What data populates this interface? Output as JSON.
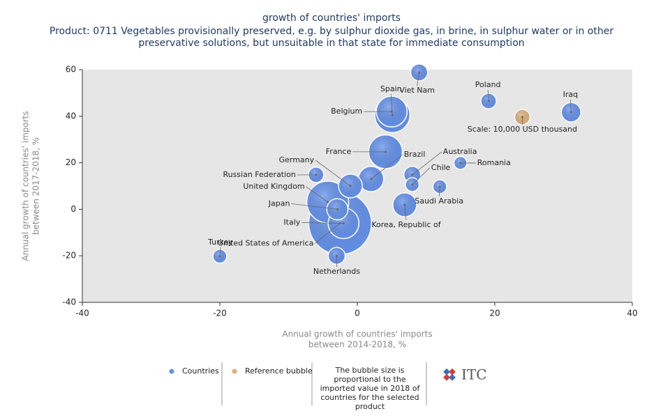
{
  "chart_data": {
    "type": "bubble",
    "title": "growth of countries' imports",
    "subtitle": "Product: 0711 Vegetables provisionally preserved, e.g. by sulphur dioxide gas, in brine, in sulphur water or in other preservative solutions, but unsuitable in that state for immediate consumption",
    "x_label": [
      "Annual growth of countries' imports",
      "between 2014-2018, %"
    ],
    "y_label": [
      "Annual growth of countries' imports",
      "between 2017-2018, %"
    ],
    "xlim": [
      -40,
      40
    ],
    "xticks": [
      -40,
      -20,
      0,
      20,
      40
    ],
    "ylim": [
      -40,
      60
    ],
    "yticks": [
      -40,
      -20,
      0,
      20,
      40,
      60
    ],
    "size_unit": "USD thousand",
    "series": [
      {
        "name": "Countries",
        "color": "#6490e8",
        "labels": [
          "Viet Nam",
          "Spain",
          "Belgium",
          "Poland",
          "Iraq",
          "France",
          "Brazil",
          "Australia",
          "Chile",
          "Romania",
          "Saudi Arabia",
          "Korea, Republic of",
          "Germany",
          "Russian Federation",
          "United Kingdom",
          "Japan",
          "Italy",
          "United States of America",
          "Turkey",
          "Netherlands"
        ],
        "x": [
          9,
          5.1,
          5,
          19.1,
          31.1,
          4.1,
          2,
          8,
          8,
          15,
          12,
          6.9,
          -1,
          -6,
          -4.3,
          -2.9,
          -2,
          -2.5,
          -20,
          -3
        ],
        "values": [
          58.8,
          40.5,
          42,
          46.5,
          41.7,
          24.7,
          13,
          14.8,
          10.6,
          19.9,
          9.7,
          1.9,
          10,
          14.8,
          3.1,
          0,
          -6,
          -6,
          -20.2,
          -20
        ],
        "sizes": [
          12000,
          52000,
          40000,
          10000,
          16000,
          48000,
          27000,
          12000,
          8000,
          7000,
          8000,
          24000,
          24000,
          10000,
          74000,
          19000,
          40000,
          167000,
          8000,
          12000
        ]
      },
      {
        "name": "Reference bubble",
        "color": "#d9b07a",
        "labels": [
          "Scale: 10,000 USD thousand"
        ],
        "x": [
          24
        ],
        "values": [
          39.6
        ],
        "sizes": [
          10000
        ]
      }
    ],
    "note": "The bubble size is proportional to the imported value in 2018 of countries for the selected product",
    "logo": "ITC"
  }
}
